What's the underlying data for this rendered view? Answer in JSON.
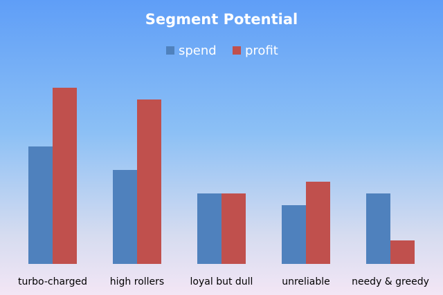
{
  "chart_data": {
    "type": "bar",
    "title": "Segment Potential",
    "categories": [
      "turbo-charged",
      "high rollers",
      "loyal but dull",
      "unreliable",
      "needy & greedy"
    ],
    "series": [
      {
        "name": "spend",
        "color": "#4f81bd",
        "values": [
          5,
          4,
          3,
          2.5,
          3
        ]
      },
      {
        "name": "profit",
        "color": "#c0504d",
        "values": [
          7.5,
          7,
          3,
          3.5,
          1
        ]
      }
    ],
    "ylim": [
      0,
      9
    ],
    "grid": false,
    "legend": "top"
  }
}
